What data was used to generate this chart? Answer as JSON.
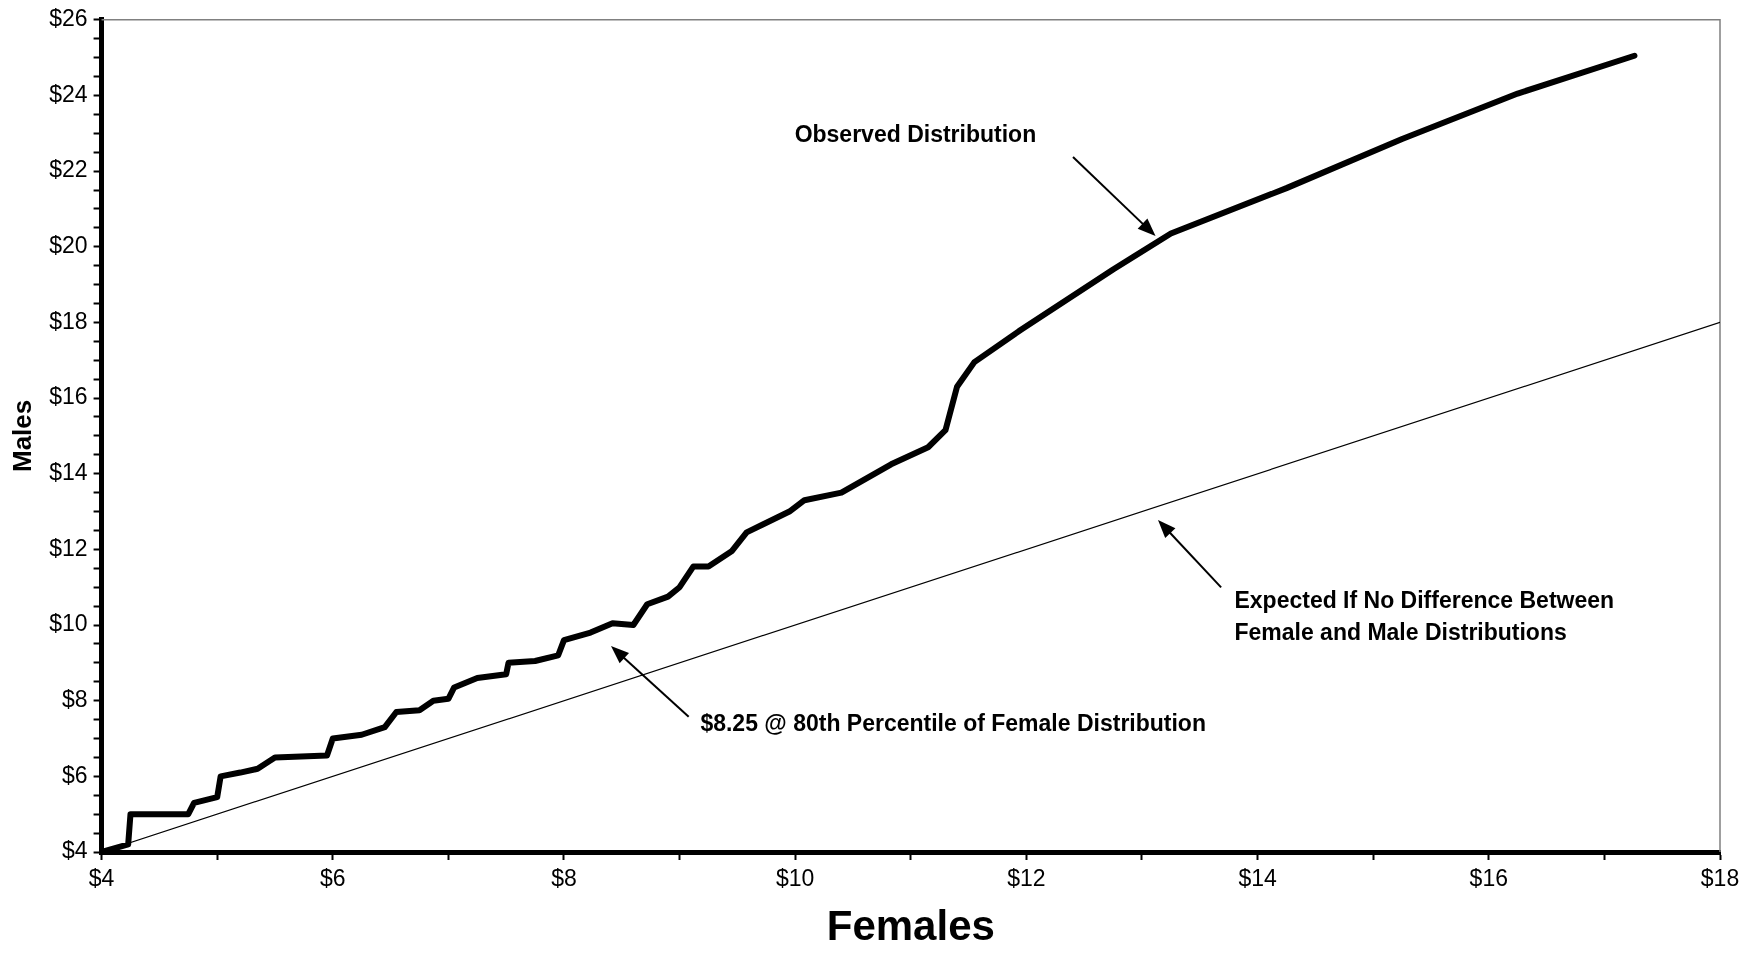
{
  "chart_data": {
    "type": "line",
    "xlabel": "Females",
    "ylabel": "Males",
    "xlim": [
      4,
      18
    ],
    "ylim": [
      4,
      26
    ],
    "xticks": [
      {
        "value": 4,
        "label": "$4"
      },
      {
        "value": 5,
        "label": null
      },
      {
        "value": 6,
        "label": "$6"
      },
      {
        "value": 7,
        "label": null
      },
      {
        "value": 8,
        "label": "$8"
      },
      {
        "value": 9,
        "label": null
      },
      {
        "value": 10,
        "label": "$10"
      },
      {
        "value": 11,
        "label": null
      },
      {
        "value": 12,
        "label": "$12"
      },
      {
        "value": 13,
        "label": null
      },
      {
        "value": 14,
        "label": "$14"
      },
      {
        "value": 15,
        "label": null
      },
      {
        "value": 16,
        "label": "$16"
      },
      {
        "value": 17,
        "label": null
      },
      {
        "value": 18,
        "label": "$18"
      }
    ],
    "yticks": [
      {
        "value": 4,
        "label": "$4"
      },
      {
        "value": 4.5,
        "label": null
      },
      {
        "value": 5,
        "label": null
      },
      {
        "value": 5.5,
        "label": null
      },
      {
        "value": 6,
        "label": "$6"
      },
      {
        "value": 6.5,
        "label": null
      },
      {
        "value": 7,
        "label": null
      },
      {
        "value": 7.5,
        "label": null
      },
      {
        "value": 8,
        "label": "$8"
      },
      {
        "value": 8.5,
        "label": null
      },
      {
        "value": 9,
        "label": null
      },
      {
        "value": 9.5,
        "label": null
      },
      {
        "value": 10,
        "label": "$10"
      },
      {
        "value": 10.5,
        "label": null
      },
      {
        "value": 11,
        "label": null
      },
      {
        "value": 11.5,
        "label": null
      },
      {
        "value": 12,
        "label": "$12"
      },
      {
        "value": 12.5,
        "label": null
      },
      {
        "value": 13,
        "label": null
      },
      {
        "value": 13.5,
        "label": null
      },
      {
        "value": 14,
        "label": "$14"
      },
      {
        "value": 14.5,
        "label": null
      },
      {
        "value": 15,
        "label": null
      },
      {
        "value": 15.5,
        "label": null
      },
      {
        "value": 16,
        "label": "$16"
      },
      {
        "value": 16.5,
        "label": null
      },
      {
        "value": 17,
        "label": null
      },
      {
        "value": 17.5,
        "label": null
      },
      {
        "value": 18,
        "label": "$18"
      },
      {
        "value": 18.5,
        "label": null
      },
      {
        "value": 19,
        "label": null
      },
      {
        "value": 19.5,
        "label": null
      },
      {
        "value": 20,
        "label": "$20"
      },
      {
        "value": 20.5,
        "label": null
      },
      {
        "value": 21,
        "label": null
      },
      {
        "value": 21.5,
        "label": null
      },
      {
        "value": 22,
        "label": "$22"
      },
      {
        "value": 22.5,
        "label": null
      },
      {
        "value": 23,
        "label": null
      },
      {
        "value": 23.5,
        "label": null
      },
      {
        "value": 24,
        "label": "$24"
      },
      {
        "value": 24.5,
        "label": null
      },
      {
        "value": 25,
        "label": null
      },
      {
        "value": 25.5,
        "label": null
      },
      {
        "value": 26,
        "label": "$26"
      }
    ],
    "grid": false,
    "legend": false,
    "marker": "none",
    "line_style": "solid",
    "series": [
      {
        "color": "#000000",
        "x": [
          4,
          4.23,
          4.25,
          4.75,
          4.8,
          5.0,
          5.03,
          5.2,
          5.35,
          5.5,
          5.95,
          6.0,
          6.25,
          6.45,
          6.55,
          6.75,
          6.87,
          7.0,
          7.05,
          7.25,
          7.5,
          7.52,
          7.75,
          7.95,
          8.0,
          8.23,
          8.42,
          8.6,
          8.72,
          8.9,
          9.0,
          9.12,
          9.25,
          9.45,
          9.58,
          9.95,
          10.08,
          10.4,
          10.83,
          11.15,
          11.3,
          11.4,
          11.55,
          11.95,
          12.75,
          13.25,
          14.25,
          15.25,
          16.25,
          17.26
        ],
        "values": [
          4,
          4.2,
          5.0,
          5.0,
          5.3,
          5.45,
          6.0,
          6.1,
          6.2,
          6.5,
          6.55,
          7.0,
          7.1,
          7.3,
          7.7,
          7.75,
          8.0,
          8.05,
          8.35,
          8.6,
          8.7,
          9.0,
          9.05,
          9.2,
          9.6,
          9.8,
          10.05,
          10.0,
          10.55,
          10.75,
          11.0,
          11.55,
          11.55,
          11.95,
          12.45,
          13.0,
          13.3,
          13.5,
          14.25,
          14.7,
          15.15,
          16.3,
          16.95,
          17.8,
          19.4,
          20.35,
          21.55,
          22.85,
          24.05,
          25.05
        ]
      },
      {
        "color": "#000000",
        "x": [
          4,
          18
        ],
        "values": [
          4,
          18
        ]
      }
    ],
    "annotations": [
      "Observed Distribution",
      "Expected If No Difference Between\nFemale and Male Distributions",
      "$8.25 @ 80th Percentile of Female Distribution"
    ]
  }
}
